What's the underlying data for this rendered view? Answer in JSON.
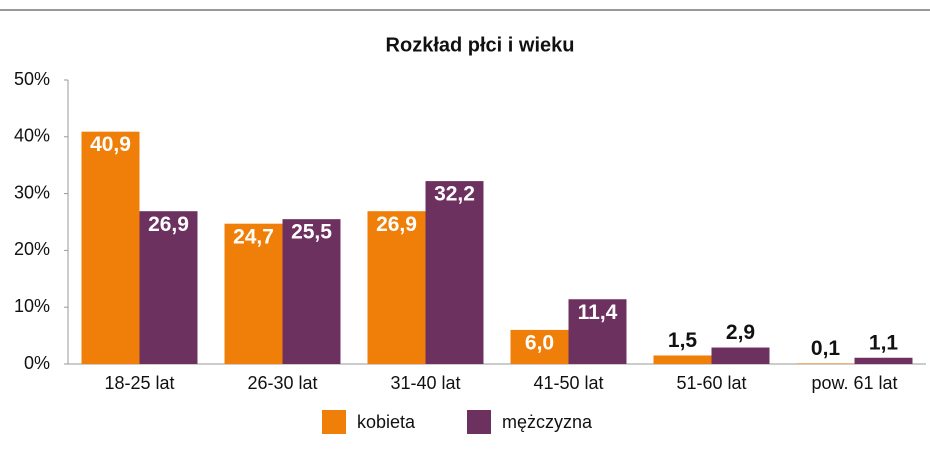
{
  "chart_data": {
    "type": "bar",
    "title": "Rozkład płci i wieku",
    "categories": [
      "18-25 lat",
      "26-30 lat",
      "31-40 lat",
      "41-50 lat",
      "51-60 lat",
      "pow. 61 lat"
    ],
    "series": [
      {
        "name": "kobieta",
        "color": "#f07f09",
        "values": [
          40.9,
          24.7,
          26.9,
          6.0,
          1.5,
          0.1
        ],
        "value_labels": [
          "40,9",
          "24,7",
          "26,9",
          "6,0",
          "1,5",
          "0,1"
        ]
      },
      {
        "name": "mężczyzna",
        "color": "#6d3160",
        "values": [
          26.9,
          25.5,
          32.2,
          11.4,
          2.9,
          1.1
        ],
        "value_labels": [
          "26,9",
          "25,5",
          "32,2",
          "11,4",
          "2,9",
          "1,1"
        ]
      }
    ],
    "ylim": [
      0,
      50
    ],
    "yticks": [
      {
        "value": 0,
        "label": "0%"
      },
      {
        "value": 10,
        "label": "10%"
      },
      {
        "value": 20,
        "label": "20%"
      },
      {
        "value": 30,
        "label": "30%"
      },
      {
        "value": 40,
        "label": "40%"
      },
      {
        "value": 50,
        "label": "50%"
      }
    ],
    "legend": "bottom"
  }
}
